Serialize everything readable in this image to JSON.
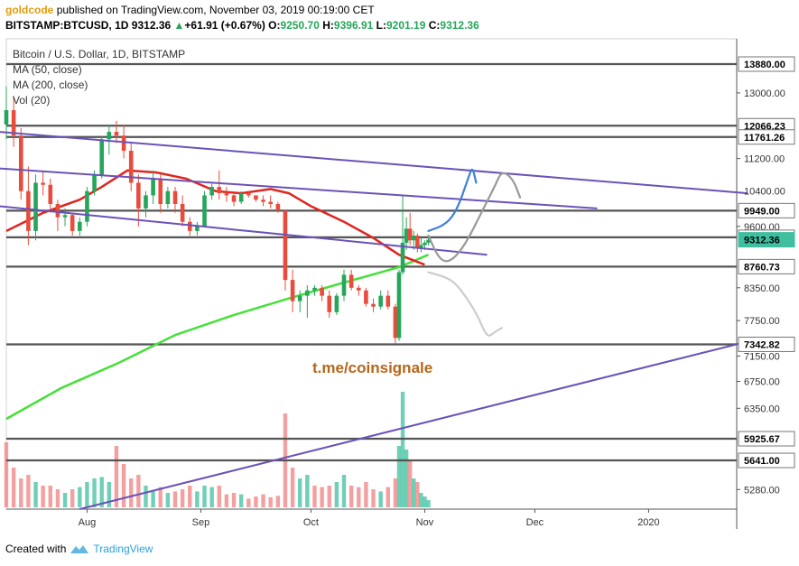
{
  "header": {
    "author": "goldcode",
    "published_text": "published on TradingView.com, November 03, 2019 00:19:00 CET",
    "symbol": "BITSTAMP:BTCUSD, 1D",
    "last": "9312.36",
    "change": "+61.91 (+0.67%)",
    "change_arrow": "▲",
    "o_label": "O:",
    "o_value": "9250.70",
    "h_label": "H:",
    "h_value": "9396.91",
    "l_label": "L:",
    "l_value": "9201.19",
    "c_label": "C:",
    "c_value": "9312.36"
  },
  "legend": {
    "title": "Bitcoin / U.S. Dollar, 1D, BITSTAMP",
    "ma50": "MA (50, close)",
    "ma200": "MA (200, close)",
    "vol": "Vol (20)"
  },
  "watermark": "t.me/coinsignale",
  "footer": {
    "created_with": "Created with",
    "brand": "TradingView"
  },
  "colors": {
    "up": "#3fbf9f",
    "down": "#f08080",
    "ma50": "#e0251f",
    "ma200": "#45e038",
    "trendline": "#6b52b8",
    "level": "#555555",
    "proj_blue": "#3d7fd9",
    "proj_gray": "#999999",
    "proj_lightgray": "#cccccc",
    "watermark": "#b6661a"
  },
  "chart_data": {
    "type": "candlestick",
    "y_scale": "log",
    "ylim": [
      5050,
      14700
    ],
    "x_range": [
      "2019-07-10",
      "2020-01-25"
    ],
    "x_ticks": [
      {
        "date": "2019-08-01",
        "label": "Aug"
      },
      {
        "date": "2019-09-01",
        "label": "Sep"
      },
      {
        "date": "2019-10-01",
        "label": "Oct"
      },
      {
        "date": "2019-11-01",
        "label": "Nov"
      },
      {
        "date": "2019-12-01",
        "label": "Dec"
      },
      {
        "date": "2020-01-01",
        "label": "2020"
      }
    ],
    "y_ticks": [
      13000.0,
      11200.0,
      9600.0,
      8350.0,
      7750.0,
      7150.0,
      6750.0,
      6350.0,
      5280.0
    ],
    "price_tags": [
      {
        "label": "13880.00",
        "value": 13880.0,
        "style": "level"
      },
      {
        "label": "12066.23",
        "value": 12066.23,
        "style": "level"
      },
      {
        "label": "11761.26",
        "value": 11761.26,
        "style": "level"
      },
      {
        "label": "10400.00",
        "value": 10400.0,
        "style": "plain"
      },
      {
        "label": "9949.00",
        "value": 9949.0,
        "style": "level"
      },
      {
        "label": "9364.59",
        "value": 9364.59,
        "style": "level"
      },
      {
        "label": "9312.36",
        "value": 9312.36,
        "style": "last"
      },
      {
        "label": "8760.73",
        "value": 8760.73,
        "style": "level"
      },
      {
        "label": "7342.82",
        "value": 7342.82,
        "style": "level"
      },
      {
        "label": "5925.67",
        "value": 5925.67,
        "style": "level"
      },
      {
        "label": "5641.00",
        "value": 5641.0,
        "style": "level"
      }
    ],
    "levels": [
      13880.0,
      12066.23,
      11761.26,
      9949.0,
      9364.59,
      8760.73,
      7342.82,
      5925.67,
      5641.0
    ],
    "candles": [
      [
        "2019-07-10",
        12100,
        13200,
        11700,
        12500
      ],
      [
        "2019-07-12",
        12500,
        12900,
        11500,
        11800
      ],
      [
        "2019-07-14",
        11800,
        12000,
        10200,
        10400
      ],
      [
        "2019-07-16",
        10400,
        11000,
        9200,
        9500
      ],
      [
        "2019-07-18",
        9500,
        10800,
        9300,
        10600
      ],
      [
        "2019-07-20",
        10600,
        10900,
        10300,
        10550
      ],
      [
        "2019-07-22",
        10550,
        10700,
        9900,
        10100
      ],
      [
        "2019-07-24",
        10100,
        10200,
        9500,
        9800
      ],
      [
        "2019-07-26",
        9800,
        10000,
        9600,
        9850
      ],
      [
        "2019-07-28",
        9850,
        9900,
        9400,
        9500
      ],
      [
        "2019-07-30",
        9500,
        9800,
        9400,
        9700
      ],
      [
        "2019-08-01",
        9700,
        10500,
        9600,
        10400
      ],
      [
        "2019-08-03",
        10400,
        10900,
        10300,
        10800
      ],
      [
        "2019-08-05",
        10800,
        11800,
        10700,
        11700
      ],
      [
        "2019-08-07",
        11700,
        12100,
        11300,
        11900
      ],
      [
        "2019-08-09",
        11900,
        12200,
        11600,
        11800
      ],
      [
        "2019-08-11",
        11800,
        12100,
        11200,
        11400
      ],
      [
        "2019-08-13",
        11400,
        11600,
        10400,
        10600
      ],
      [
        "2019-08-15",
        10600,
        10800,
        9600,
        10000
      ],
      [
        "2019-08-17",
        10000,
        10400,
        9800,
        10300
      ],
      [
        "2019-08-19",
        10300,
        10900,
        10100,
        10700
      ],
      [
        "2019-08-21",
        10700,
        10800,
        9900,
        10100
      ],
      [
        "2019-08-23",
        10100,
        10500,
        10000,
        10400
      ],
      [
        "2019-08-25",
        10400,
        10500,
        9900,
        10100
      ],
      [
        "2019-08-27",
        10100,
        10300,
        9600,
        9700
      ],
      [
        "2019-08-29",
        9700,
        9800,
        9400,
        9500
      ],
      [
        "2019-08-31",
        9500,
        9700,
        9400,
        9600
      ],
      [
        "2019-09-02",
        9600,
        10400,
        9600,
        10300
      ],
      [
        "2019-09-04",
        10300,
        10600,
        10200,
        10500
      ],
      [
        "2019-09-06",
        10500,
        10900,
        10200,
        10350
      ],
      [
        "2019-09-08",
        10350,
        10500,
        10150,
        10300
      ],
      [
        "2019-09-10",
        10300,
        10350,
        10050,
        10150
      ],
      [
        "2019-09-12",
        10150,
        10400,
        10100,
        10350
      ],
      [
        "2019-09-14",
        10350,
        10400,
        10250,
        10300
      ],
      [
        "2019-09-16",
        10300,
        10300,
        10150,
        10200
      ],
      [
        "2019-09-18",
        10200,
        10300,
        10050,
        10150
      ],
      [
        "2019-09-20",
        10150,
        10300,
        10000,
        10100
      ],
      [
        "2019-09-22",
        10100,
        10150,
        9900,
        9950
      ],
      [
        "2019-09-24",
        9950,
        9950,
        8300,
        8500
      ],
      [
        "2019-09-26",
        8500,
        8700,
        7900,
        8100
      ],
      [
        "2019-09-28",
        8100,
        8300,
        7900,
        8200
      ],
      [
        "2019-09-30",
        8200,
        8400,
        7800,
        8300
      ],
      [
        "2019-10-02",
        8300,
        8400,
        8200,
        8350
      ],
      [
        "2019-10-04",
        8350,
        8400,
        8100,
        8200
      ],
      [
        "2019-10-06",
        8200,
        8300,
        7800,
        7900
      ],
      [
        "2019-10-08",
        7900,
        8250,
        7850,
        8200
      ],
      [
        "2019-10-10",
        8200,
        8700,
        8100,
        8600
      ],
      [
        "2019-10-12",
        8600,
        8700,
        8300,
        8350
      ],
      [
        "2019-10-14",
        8350,
        8400,
        8200,
        8300
      ],
      [
        "2019-10-16",
        8300,
        8350,
        8000,
        8050
      ],
      [
        "2019-10-18",
        8050,
        8150,
        7900,
        8000
      ],
      [
        "2019-10-20",
        8000,
        8300,
        7950,
        8200
      ],
      [
        "2019-10-22",
        8200,
        8300,
        7950,
        8000
      ],
      [
        "2019-10-24",
        8000,
        8050,
        7350,
        7450
      ],
      [
        "2019-10-25",
        7450,
        8700,
        7400,
        8650
      ],
      [
        "2019-10-26",
        8650,
        10300,
        8600,
        9250
      ],
      [
        "2019-10-27",
        9250,
        9800,
        9100,
        9550
      ],
      [
        "2019-10-28",
        9550,
        9900,
        9200,
        9300
      ],
      [
        "2019-10-29",
        9300,
        9500,
        9100,
        9400
      ],
      [
        "2019-10-30",
        9400,
        9450,
        9050,
        9150
      ],
      [
        "2019-10-31",
        9150,
        9350,
        9050,
        9200
      ],
      [
        "2019-11-01",
        9200,
        9300,
        9100,
        9250
      ],
      [
        "2019-11-02",
        9250,
        9397,
        9201,
        9312
      ]
    ],
    "volume": {
      "unit": "relative 0-1",
      "bars": [
        [
          "2019-07-10",
          0.9,
          "down"
        ],
        [
          "2019-07-12",
          0.55,
          "down"
        ],
        [
          "2019-07-14",
          0.4,
          "down"
        ],
        [
          "2019-07-16",
          0.45,
          "down"
        ],
        [
          "2019-07-18",
          0.35,
          "up"
        ],
        [
          "2019-07-20",
          0.3,
          "down"
        ],
        [
          "2019-07-22",
          0.3,
          "down"
        ],
        [
          "2019-07-24",
          0.25,
          "down"
        ],
        [
          "2019-07-26",
          0.2,
          "up"
        ],
        [
          "2019-07-28",
          0.25,
          "down"
        ],
        [
          "2019-07-30",
          0.28,
          "up"
        ],
        [
          "2019-08-01",
          0.35,
          "up"
        ],
        [
          "2019-08-03",
          0.4,
          "up"
        ],
        [
          "2019-08-05",
          0.42,
          "up"
        ],
        [
          "2019-08-07",
          0.35,
          "up"
        ],
        [
          "2019-08-09",
          0.85,
          "down"
        ],
        [
          "2019-08-11",
          0.6,
          "down"
        ],
        [
          "2019-08-13",
          0.4,
          "down"
        ],
        [
          "2019-08-15",
          0.45,
          "down"
        ],
        [
          "2019-08-17",
          0.3,
          "up"
        ],
        [
          "2019-08-19",
          0.22,
          "up"
        ],
        [
          "2019-08-21",
          0.28,
          "down"
        ],
        [
          "2019-08-23",
          0.2,
          "up"
        ],
        [
          "2019-08-25",
          0.22,
          "down"
        ],
        [
          "2019-08-27",
          0.25,
          "down"
        ],
        [
          "2019-08-29",
          0.3,
          "down"
        ],
        [
          "2019-08-31",
          0.22,
          "up"
        ],
        [
          "2019-09-02",
          0.3,
          "up"
        ],
        [
          "2019-09-04",
          0.28,
          "up"
        ],
        [
          "2019-09-06",
          0.3,
          "down"
        ],
        [
          "2019-09-08",
          0.18,
          "down"
        ],
        [
          "2019-09-10",
          0.2,
          "down"
        ],
        [
          "2019-09-12",
          0.18,
          "up"
        ],
        [
          "2019-09-14",
          0.12,
          "down"
        ],
        [
          "2019-09-16",
          0.15,
          "down"
        ],
        [
          "2019-09-18",
          0.18,
          "down"
        ],
        [
          "2019-09-20",
          0.14,
          "down"
        ],
        [
          "2019-09-22",
          0.16,
          "down"
        ],
        [
          "2019-09-24",
          1.3,
          "down"
        ],
        [
          "2019-09-26",
          0.55,
          "down"
        ],
        [
          "2019-09-28",
          0.4,
          "up"
        ],
        [
          "2019-09-30",
          0.45,
          "up"
        ],
        [
          "2019-10-02",
          0.3,
          "down"
        ],
        [
          "2019-10-04",
          0.28,
          "down"
        ],
        [
          "2019-10-06",
          0.3,
          "down"
        ],
        [
          "2019-10-08",
          0.35,
          "up"
        ],
        [
          "2019-10-10",
          0.45,
          "up"
        ],
        [
          "2019-10-12",
          0.3,
          "down"
        ],
        [
          "2019-10-14",
          0.28,
          "down"
        ],
        [
          "2019-10-16",
          0.35,
          "down"
        ],
        [
          "2019-10-18",
          0.25,
          "down"
        ],
        [
          "2019-10-20",
          0.22,
          "up"
        ],
        [
          "2019-10-22",
          0.28,
          "down"
        ],
        [
          "2019-10-24",
          0.4,
          "down"
        ],
        [
          "2019-10-25",
          0.85,
          "up"
        ],
        [
          "2019-10-26",
          1.6,
          "up"
        ],
        [
          "2019-10-27",
          0.8,
          "up"
        ],
        [
          "2019-10-28",
          0.65,
          "down"
        ],
        [
          "2019-10-29",
          0.4,
          "up"
        ],
        [
          "2019-10-30",
          0.35,
          "down"
        ],
        [
          "2019-10-31",
          0.2,
          "up"
        ],
        [
          "2019-11-01",
          0.15,
          "up"
        ],
        [
          "2019-11-02",
          0.1,
          "up"
        ]
      ]
    },
    "ma50": [
      [
        "2019-07-10",
        9500
      ],
      [
        "2019-07-20",
        9900
      ],
      [
        "2019-07-30",
        10200
      ],
      [
        "2019-08-05",
        10500
      ],
      [
        "2019-08-12",
        10900
      ],
      [
        "2019-08-20",
        10850
      ],
      [
        "2019-08-28",
        10700
      ],
      [
        "2019-09-05",
        10400
      ],
      [
        "2019-09-12",
        10350
      ],
      [
        "2019-09-20",
        10450
      ],
      [
        "2019-09-25",
        10350
      ],
      [
        "2019-10-01",
        10050
      ],
      [
        "2019-10-10",
        9700
      ],
      [
        "2019-10-18",
        9350
      ],
      [
        "2019-10-25",
        9000
      ],
      [
        "2019-11-01",
        8800
      ]
    ],
    "ma200": [
      [
        "2019-07-10",
        6200
      ],
      [
        "2019-07-25",
        6650
      ],
      [
        "2019-08-10",
        7050
      ],
      [
        "2019-08-25",
        7500
      ],
      [
        "2019-09-10",
        7850
      ],
      [
        "2019-09-25",
        8150
      ],
      [
        "2019-10-10",
        8450
      ],
      [
        "2019-10-25",
        8750
      ],
      [
        "2019-11-02",
        9000
      ]
    ],
    "trendlines": [
      {
        "from": [
          "2019-07-08",
          10050
        ],
        "to": [
          "2019-11-18",
          9000
        ]
      },
      {
        "from": [
          "2019-07-08",
          10950
        ],
        "to": [
          "2019-12-18",
          10000
        ]
      },
      {
        "from": [
          "2019-07-08",
          11900
        ],
        "to": [
          "2020-01-28",
          10350
        ]
      },
      {
        "from": [
          "2019-07-30",
          5050
        ],
        "to": [
          "2020-01-28",
          7390
        ]
      }
    ],
    "projections": [
      {
        "style": "blue",
        "points": [
          [
            "2019-11-02",
            9500
          ],
          [
            "2019-11-07",
            9650
          ],
          [
            "2019-11-10",
            10000
          ],
          [
            "2019-11-13",
            10750
          ],
          [
            "2019-11-14",
            11000
          ],
          [
            "2019-11-15",
            10600
          ]
        ]
      },
      {
        "style": "gray",
        "points": [
          [
            "2019-11-02",
            9400
          ],
          [
            "2019-11-05",
            8900
          ],
          [
            "2019-11-08",
            8850
          ],
          [
            "2019-11-12",
            9200
          ],
          [
            "2019-11-17",
            10000
          ],
          [
            "2019-11-20",
            10500
          ],
          [
            "2019-11-22",
            10900
          ],
          [
            "2019-11-25",
            10700
          ],
          [
            "2019-11-27",
            10250
          ]
        ]
      },
      {
        "style": "lightgray",
        "points": [
          [
            "2019-11-02",
            8650
          ],
          [
            "2019-11-07",
            8550
          ],
          [
            "2019-11-10",
            8400
          ],
          [
            "2019-11-15",
            7900
          ],
          [
            "2019-11-18",
            7450
          ],
          [
            "2019-11-20",
            7550
          ],
          [
            "2019-11-22",
            7620
          ]
        ]
      }
    ]
  }
}
